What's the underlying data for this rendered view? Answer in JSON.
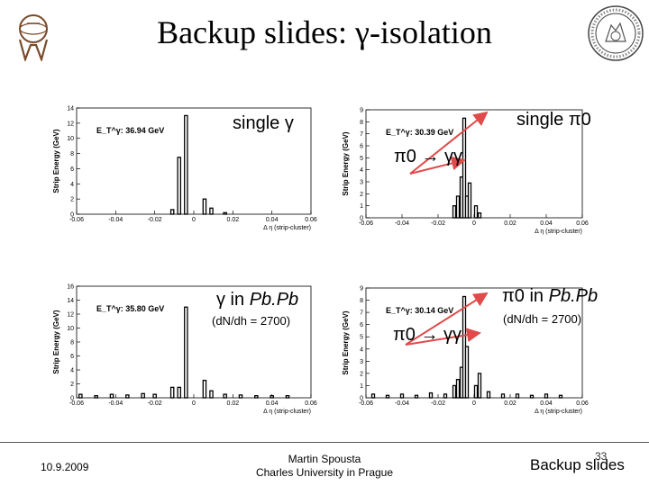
{
  "slide": {
    "title": "Backup slides: γ-isolation",
    "footer_date": "10.9.2009",
    "footer_author": "Martin Spousta",
    "footer_affiliation": "Charles University in Prague",
    "footer_page": "33",
    "footer_section": "Backup slides"
  },
  "annotations": {
    "single_gamma": "single γ",
    "single_pi0": "single π0",
    "pi0_decay_top": "π0 → γγ",
    "gamma_pbpb_gamma": "γ in",
    "gamma_pbpb_pbpb": "Pb.Pb",
    "gamma_pbpb_mult": "(dN/dh = 2700)",
    "pi0_pbpb_pi": "π0 in",
    "pi0_pbpb_pbpb": "Pb.Pb",
    "pi0_pbpb_mult": "(dN/dh = 2700)",
    "pi0_decay_bottom": "π0 → γγ"
  },
  "chart_data": [
    {
      "type": "bar",
      "panel": "top-left",
      "et_label": "E_T^γ: 36.94 GeV",
      "xlabel": "Δ η (strip-cluster)",
      "ylabel": "Strip Energy (GeV)",
      "xlim": [
        -0.06,
        0.06
      ],
      "ylim": [
        0,
        14
      ],
      "xticks": [
        "-0.06",
        "-0.04",
        "-0.02",
        "0",
        "0.02",
        "0.04",
        "0.06"
      ],
      "yticks": [
        "0",
        "2",
        "4",
        "6",
        "8",
        "10",
        "12",
        "14"
      ],
      "x": [
        -0.011,
        -0.0075,
        -0.004,
        0.0055,
        0.009,
        0.016
      ],
      "values": [
        0.6,
        7.5,
        13.0,
        2.0,
        0.8,
        0.2
      ]
    },
    {
      "type": "bar",
      "panel": "top-right",
      "et_label": "E_T^γ: 30.39 GeV",
      "xlabel": "Δ η (strip-cluster)",
      "ylabel": "Strip Energy (GeV)",
      "xlim": [
        -0.06,
        0.06
      ],
      "ylim": [
        0,
        9
      ],
      "xticks": [
        "-0.06",
        "-0.04",
        "-0.02",
        "0",
        "0.02",
        "0.04",
        "0.06"
      ],
      "yticks": [
        "0",
        "1",
        "2",
        "3",
        "4",
        "5",
        "6",
        "7",
        "8",
        "9"
      ],
      "x": [
        -0.011,
        -0.009,
        -0.007,
        -0.0055,
        -0.004,
        -0.0025,
        0.001,
        0.003
      ],
      "values": [
        1.0,
        1.8,
        3.4,
        8.3,
        1.8,
        2.9,
        1.0,
        0.4
      ]
    },
    {
      "type": "bar",
      "panel": "bottom-left",
      "et_label": "E_T^γ: 35.80 GeV",
      "xlabel": "Δ η (strip-cluster)",
      "ylabel": "Strip Energy (GeV)",
      "xlim": [
        -0.06,
        0.06
      ],
      "ylim": [
        0,
        16
      ],
      "xticks": [
        "-0.06",
        "-0.04",
        "-0.02",
        "0",
        "0.02",
        "0.04",
        "0.06"
      ],
      "yticks": [
        "0",
        "2",
        "4",
        "6",
        "8",
        "10",
        "12",
        "14",
        "16"
      ],
      "x": [
        -0.058,
        -0.05,
        -0.042,
        -0.034,
        -0.026,
        -0.02,
        -0.011,
        -0.0075,
        -0.004,
        0.0055,
        0.009,
        0.016,
        0.024,
        0.032,
        0.04,
        0.048
      ],
      "values": [
        0.5,
        0.3,
        0.5,
        0.4,
        0.6,
        0.5,
        1.5,
        1.5,
        13.0,
        2.5,
        1.0,
        0.5,
        0.4,
        0.3,
        0.3,
        0.3
      ]
    },
    {
      "type": "bar",
      "panel": "bottom-right",
      "et_label": "E_T^γ: 30.14 GeV",
      "xlabel": "Δ η (strip-cluster)",
      "ylabel": "Strip Energy (GeV)",
      "xlim": [
        -0.06,
        0.06
      ],
      "ylim": [
        0,
        9
      ],
      "xticks": [
        "-0.06",
        "-0.04",
        "-0.02",
        "0",
        "0.02",
        "0.04",
        "0.06"
      ],
      "yticks": [
        "0",
        "1",
        "2",
        "3",
        "4",
        "5",
        "6",
        "7",
        "8",
        "9"
      ],
      "x": [
        -0.056,
        -0.048,
        -0.04,
        -0.032,
        -0.024,
        -0.016,
        -0.011,
        -0.009,
        -0.007,
        -0.0055,
        -0.004,
        0.001,
        0.003,
        0.008,
        0.016,
        0.024,
        0.032,
        0.04,
        0.048
      ],
      "values": [
        0.3,
        0.2,
        0.3,
        0.2,
        0.4,
        0.3,
        1.0,
        1.5,
        2.5,
        8.3,
        4.2,
        1.0,
        2.0,
        0.5,
        0.3,
        0.3,
        0.2,
        0.3,
        0.2
      ]
    }
  ]
}
